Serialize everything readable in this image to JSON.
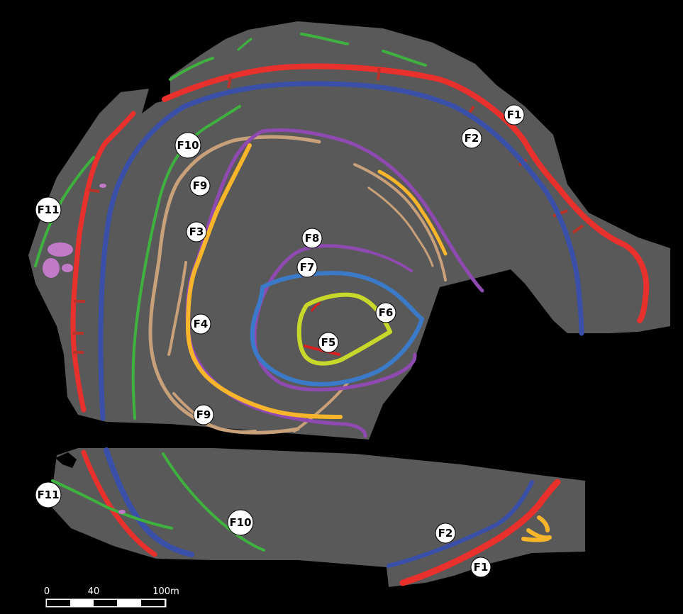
{
  "colors": {
    "background": "#000000",
    "survey_area": "#595959",
    "F1": "#e8302c",
    "F2": "#3a4fa8",
    "F3": "#f7b52b",
    "F4": "#f7b52b",
    "F5": "#d81e1e",
    "F6": "#c8d82a",
    "F7": "#3b7ac8",
    "F8": "#8e4ab0",
    "F9": "#c8a07a",
    "F10": "#3fb13f",
    "F11": "#3fb13f",
    "lilac": "#c07ac8",
    "tick": "#b8342a"
  },
  "labels": {
    "F1a": "F1",
    "F2a": "F2",
    "F3": "F3",
    "F4": "F4",
    "F5": "F5",
    "F6": "F6",
    "F7": "F7",
    "F8": "F8",
    "F9a": "F9",
    "F9b": "F9",
    "F10a": "F10",
    "F11a": "F11",
    "F11b": "F11",
    "F10b": "F10",
    "F2b": "F2",
    "F1b": "F1"
  },
  "scale_bar": {
    "tick_0": "0",
    "tick_40": "40",
    "tick_100": "100m"
  }
}
